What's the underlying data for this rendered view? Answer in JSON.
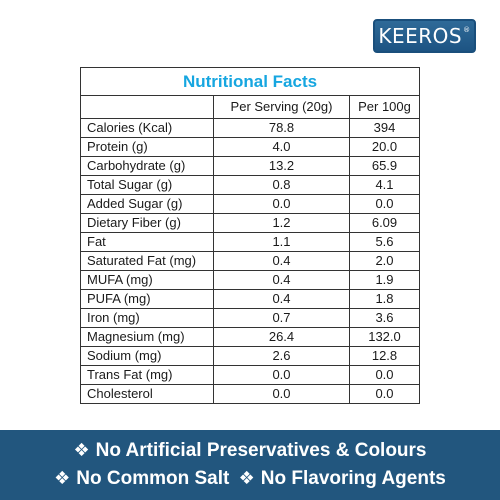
{
  "brand": {
    "name": "KEEROS",
    "mark": "®"
  },
  "table": {
    "title": "Nutritional Facts",
    "headers": [
      "",
      "Per Serving (20g)",
      "Per 100g"
    ],
    "rows": [
      {
        "label": "Calories (Kcal)",
        "serving": "78.8",
        "per100": "394"
      },
      {
        "label": "Protein (g)",
        "serving": "4.0",
        "per100": "20.0"
      },
      {
        "label": "Carbohydrate (g)",
        "serving": "13.2",
        "per100": "65.9"
      },
      {
        "label": "Total Sugar (g)",
        "serving": "0.8",
        "per100": "4.1"
      },
      {
        "label": "Added Sugar (g)",
        "serving": "0.0",
        "per100": "0.0"
      },
      {
        "label": "Dietary Fiber (g)",
        "serving": "1.2",
        "per100": "6.09"
      },
      {
        "label": "Fat",
        "serving": "1.1",
        "per100": "5.6"
      },
      {
        "label": "Saturated Fat (mg)",
        "serving": "0.4",
        "per100": "2.0"
      },
      {
        "label": "MUFA (mg)",
        "serving": "0.4",
        "per100": "1.9"
      },
      {
        "label": "PUFA (mg)",
        "serving": "0.4",
        "per100": "1.8"
      },
      {
        "label": "Iron (mg)",
        "serving": "0.7",
        "per100": "3.6"
      },
      {
        "label": "Magnesium (mg)",
        "serving": "26.4",
        "per100": "132.0"
      },
      {
        "label": "Sodium (mg)",
        "serving": "2.6",
        "per100": "12.8"
      },
      {
        "label": "Trans Fat (mg)",
        "serving": "0.0",
        "per100": "0.0"
      },
      {
        "label": "Cholesterol",
        "serving": "0.0",
        "per100": "0.0"
      }
    ]
  },
  "footer": {
    "bullet_glyph": "❖",
    "items": [
      "No Artificial Preservatives & Colours",
      "No Common Salt",
      "No Flavoring Agents"
    ]
  },
  "colors": {
    "title_blue": "#16a6e0",
    "footer_bg": "#22567e",
    "brand_bg": "#2f6a98"
  }
}
